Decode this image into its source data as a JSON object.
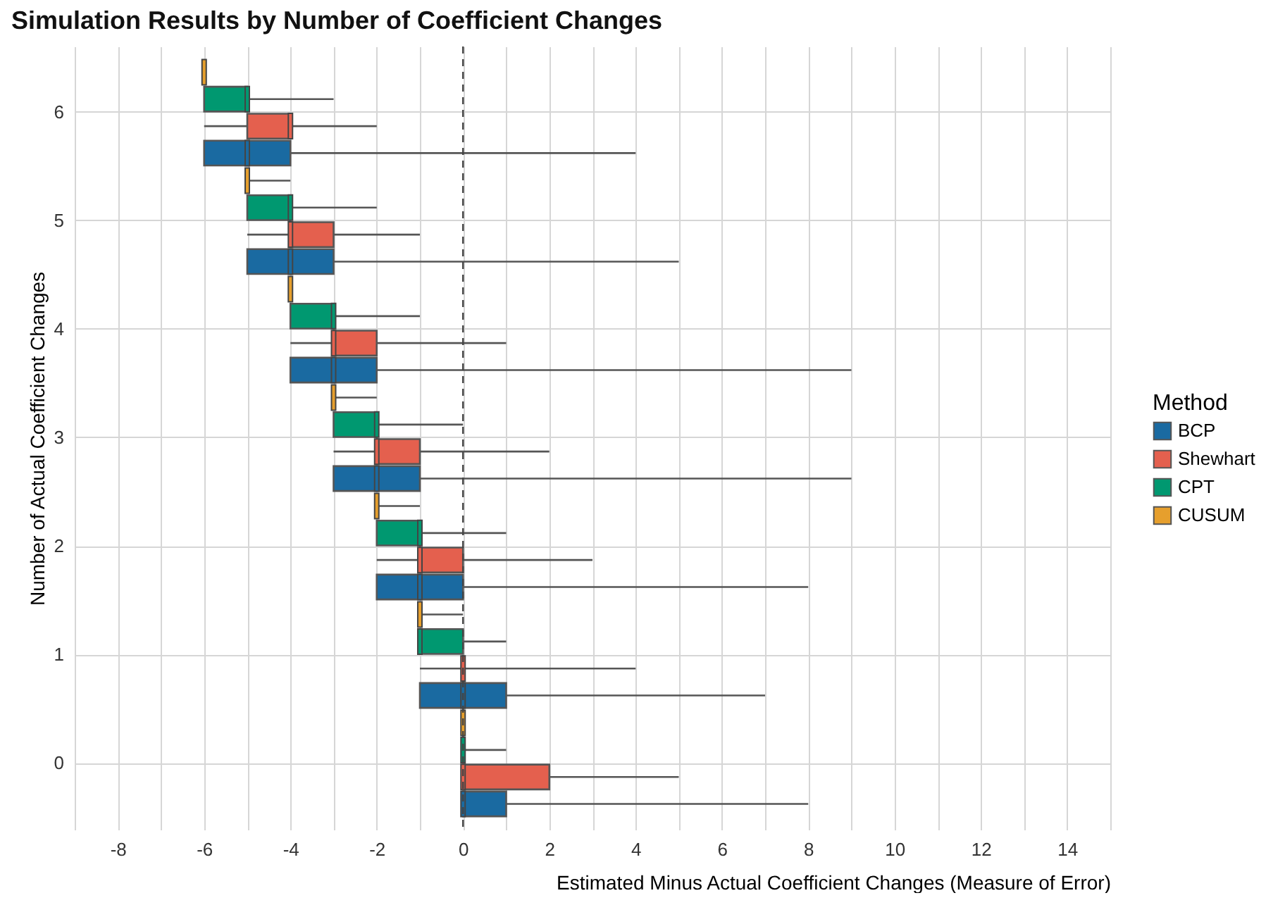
{
  "chart_data": {
    "type": "box",
    "orientation": "horizontal",
    "title": "Simulation Results by Number of Coefficient Changes",
    "xlabel": "Estimated Minus Actual Coefficient Changes (Measure of Error)",
    "ylabel": "Number of Actual Coefficient Changes",
    "legend_title": "Method",
    "categories": [
      "6",
      "5",
      "4",
      "3",
      "2",
      "1",
      "0"
    ],
    "series": [
      {
        "name": "BCP",
        "color": "#1a6aa1",
        "boxes": [
          {
            "low": -6,
            "q1": -6,
            "median": -5,
            "q3": -4,
            "high": 4
          },
          {
            "low": -5,
            "q1": -5,
            "median": -4,
            "q3": -3,
            "high": 5
          },
          {
            "low": -4,
            "q1": -4,
            "median": -3,
            "q3": -2,
            "high": 9
          },
          {
            "low": -3,
            "q1": -3,
            "median": -2,
            "q3": -1,
            "high": 9
          },
          {
            "low": -2,
            "q1": -2,
            "median": -1,
            "q3": 0,
            "high": 8
          },
          {
            "low": -1,
            "q1": -1,
            "median": 0,
            "q3": 1,
            "high": 7
          },
          {
            "low": 0,
            "q1": 0,
            "median": 0,
            "q3": 1,
            "high": 8
          }
        ]
      },
      {
        "name": "Shewhart",
        "color": "#e4604e",
        "boxes": [
          {
            "low": -6,
            "q1": -5,
            "median": -4,
            "q3": -4,
            "high": -2
          },
          {
            "low": -5,
            "q1": -4,
            "median": -4,
            "q3": -3,
            "high": -1
          },
          {
            "low": -4,
            "q1": -3,
            "median": -3,
            "q3": -2,
            "high": 1
          },
          {
            "low": -3,
            "q1": -2,
            "median": -2,
            "q3": -1,
            "high": 2
          },
          {
            "low": -2,
            "q1": -1,
            "median": -1,
            "q3": 0,
            "high": 3
          },
          {
            "low": -1,
            "q1": 0,
            "median": 0,
            "q3": 0,
            "high": 4
          },
          {
            "low": 0,
            "q1": 0,
            "median": 0,
            "q3": 2,
            "high": 5
          }
        ]
      },
      {
        "name": "CPT",
        "color": "#009870",
        "boxes": [
          {
            "low": -6,
            "q1": -6,
            "median": -5,
            "q3": -5,
            "high": -3
          },
          {
            "low": -5,
            "q1": -5,
            "median": -4,
            "q3": -4,
            "high": -2
          },
          {
            "low": -4,
            "q1": -4,
            "median": -3,
            "q3": -3,
            "high": -1
          },
          {
            "low": -3,
            "q1": -3,
            "median": -2,
            "q3": -2,
            "high": 0
          },
          {
            "low": -2,
            "q1": -2,
            "median": -1,
            "q3": -1,
            "high": 1
          },
          {
            "low": -1,
            "q1": -1,
            "median": -1,
            "q3": 0,
            "high": 1
          },
          {
            "low": 0,
            "q1": 0,
            "median": 0,
            "q3": 0,
            "high": 1
          }
        ]
      },
      {
        "name": "CUSUM",
        "color": "#e69f2d",
        "boxes": [
          {
            "low": -6,
            "q1": -6,
            "median": -6,
            "q3": -6,
            "high": -6
          },
          {
            "low": -5,
            "q1": -5,
            "median": -5,
            "q3": -5,
            "high": -4
          },
          {
            "low": -4,
            "q1": -4,
            "median": -4,
            "q3": -4,
            "high": -4
          },
          {
            "low": -3,
            "q1": -3,
            "median": -3,
            "q3": -3,
            "high": -2
          },
          {
            "low": -2,
            "q1": -2,
            "median": -2,
            "q3": -2,
            "high": -1
          },
          {
            "low": -1,
            "q1": -1,
            "median": -1,
            "q3": -1,
            "high": 0
          },
          {
            "low": 0,
            "q1": 0,
            "median": 0,
            "q3": 0,
            "high": 0
          }
        ]
      }
    ],
    "xlim": [
      -9,
      15
    ],
    "xticks": [
      {
        "value": -9,
        "label": null
      },
      -8,
      {
        "value": -7,
        "label": null
      },
      -6,
      {
        "value": -5,
        "label": null
      },
      -4,
      {
        "value": -3,
        "label": null
      },
      -2,
      {
        "value": -1,
        "label": null
      },
      0,
      {
        "value": 1,
        "label": null
      },
      2,
      {
        "value": 3,
        "label": null
      },
      4,
      {
        "value": 5,
        "label": null
      },
      6,
      {
        "value": 7,
        "label": null
      },
      8,
      {
        "value": 9,
        "label": null
      },
      10,
      {
        "value": 11,
        "label": null
      },
      12,
      {
        "value": 13,
        "label": null
      },
      14,
      {
        "value": 15,
        "label": null
      }
    ],
    "ref_lines": [
      {
        "axis": "x",
        "value": 0,
        "label": null,
        "line_style": "dashed",
        "color": "#444444"
      }
    ],
    "grid": true,
    "legend": "right"
  }
}
